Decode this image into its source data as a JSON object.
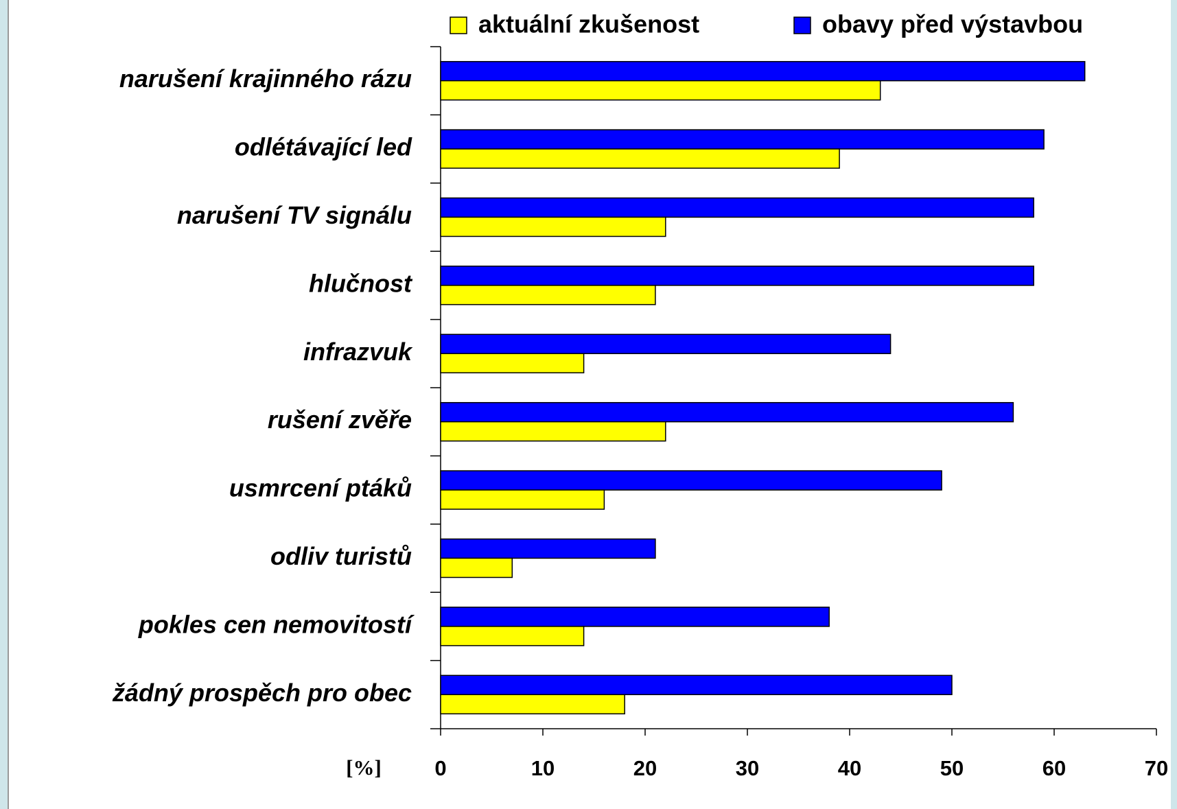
{
  "chart_data": {
    "type": "barh",
    "categories": [
      "narušení krajinného rázu",
      "odlétávající led",
      "narušení TV signálu",
      "hlučnost",
      "infrazvuk",
      "rušení zvěře",
      "usmrcení ptáků",
      "odliv turistů",
      "pokles cen nemovitostí",
      "žádný prospěch pro obec"
    ],
    "series": [
      {
        "name": "aktuální zkušenost",
        "color": "#ffff00",
        "values": [
          43,
          39,
          22,
          21,
          14,
          22,
          16,
          7,
          14,
          18
        ]
      },
      {
        "name": "obavy před výstavbou",
        "color": "#0000ff",
        "values": [
          63,
          59,
          58,
          58,
          44,
          56,
          49,
          21,
          38,
          50
        ]
      }
    ],
    "x_label": "[%]",
    "xlim": [
      0,
      70
    ],
    "xticks": [
      0,
      10,
      20,
      30,
      40,
      50,
      60,
      70
    ],
    "legend": "top"
  }
}
